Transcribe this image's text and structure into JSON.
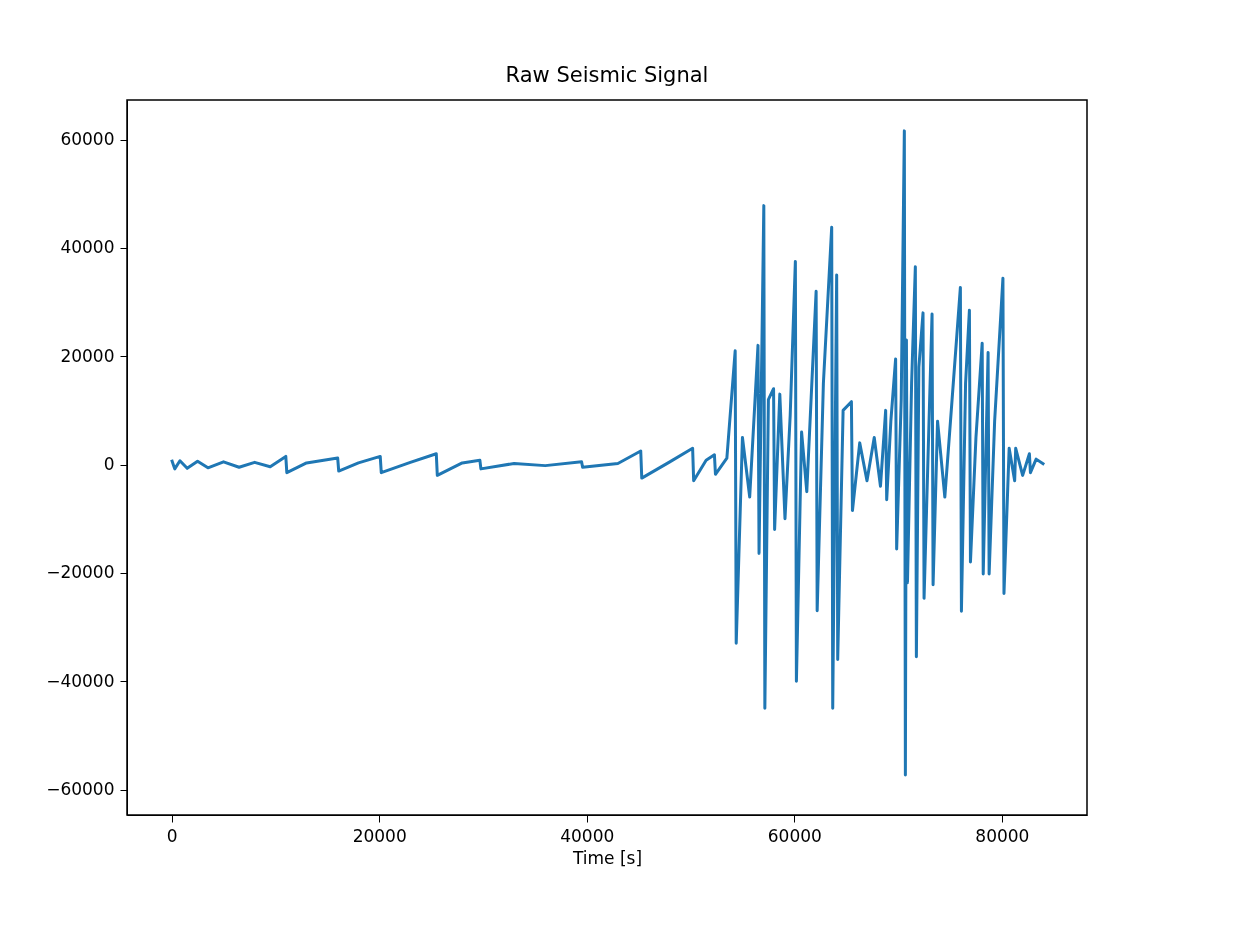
{
  "chart_data": {
    "type": "line",
    "title": "Raw Seismic Signal",
    "xlabel": "Time [s]",
    "x": [
      0,
      300,
      800,
      1500,
      2500,
      3500,
      5000,
      6500,
      8000,
      9500,
      11000,
      11100,
      13000,
      16000,
      16100,
      18000,
      20100,
      20200,
      23000,
      25500,
      25600,
      28000,
      29700,
      29800,
      33000,
      36000,
      39500,
      39600,
      43000,
      45200,
      45300,
      48000,
      50200,
      50300,
      51500,
      52300,
      52400,
      53500,
      54300,
      54400,
      55000,
      55700,
      56500,
      56600,
      57060,
      57160,
      57500,
      58000,
      58100,
      58600,
      59100,
      59600,
      60100,
      60200,
      60700,
      61200,
      62100,
      62200,
      62800,
      63600,
      63700,
      64080,
      64180,
      64700,
      65500,
      65600,
      66300,
      67000,
      67700,
      68300,
      68800,
      68900,
      69300,
      69760,
      69860,
      70300,
      70600,
      70700,
      70800,
      70900,
      71300,
      71660,
      71760,
      72000,
      72400,
      72500,
      73270,
      73370,
      73800,
      74500,
      75200,
      76000,
      76100,
      76500,
      76870,
      76970,
      77500,
      78100,
      78200,
      78670,
      78770,
      79300,
      80100,
      80200,
      80700,
      81230,
      81330,
      82000,
      82650,
      82750,
      83300,
      84080
    ],
    "series": [
      {
        "color": "#1f77b4",
        "values": [
          900,
          -800,
          700,
          -700,
          600,
          -600,
          500,
          -500,
          400,
          -400,
          1500,
          -1500,
          300,
          1200,
          -1200,
          300,
          1500,
          -1500,
          400,
          2000,
          -2000,
          300,
          800,
          -800,
          200,
          -200,
          500,
          -500,
          200,
          2500,
          -2500,
          500,
          3000,
          -3000,
          800,
          1800,
          -1800,
          1200,
          21000,
          -33000,
          5000,
          -6000,
          22000,
          -16400,
          47800,
          -45000,
          12000,
          14000,
          -12000,
          13000,
          -10000,
          9000,
          37500,
          -40000,
          6000,
          -5000,
          32000,
          -27000,
          15000,
          43800,
          -45000,
          35000,
          -36000,
          10000,
          11600,
          -8500,
          4000,
          -3000,
          5000,
          -4000,
          10000,
          -6500,
          8000,
          19500,
          -15600,
          12000,
          61600,
          -57300,
          23000,
          -21800,
          15000,
          36500,
          -35500,
          18000,
          28000,
          -24700,
          27800,
          -22200,
          8000,
          -6000,
          12000,
          32700,
          -27100,
          15000,
          28500,
          -18000,
          5000,
          22400,
          -20200,
          20700,
          -20200,
          8000,
          34400,
          -23800,
          3000,
          -3000,
          3000,
          -2000,
          2000,
          -1500,
          1000,
          0
        ]
      }
    ],
    "xlim": [
      -4300,
      88200
    ],
    "ylim": [
      -64700,
      67300
    ],
    "xticks": [
      0,
      20000,
      40000,
      60000,
      80000
    ],
    "yticks": [
      {
        "value": -60000,
        "label": "−60000"
      },
      {
        "value": -40000,
        "label": "−40000"
      },
      {
        "value": -20000,
        "label": "−20000"
      },
      0,
      20000,
      40000,
      60000
    ],
    "grid": false,
    "line_style": "solid",
    "marker": "none"
  }
}
